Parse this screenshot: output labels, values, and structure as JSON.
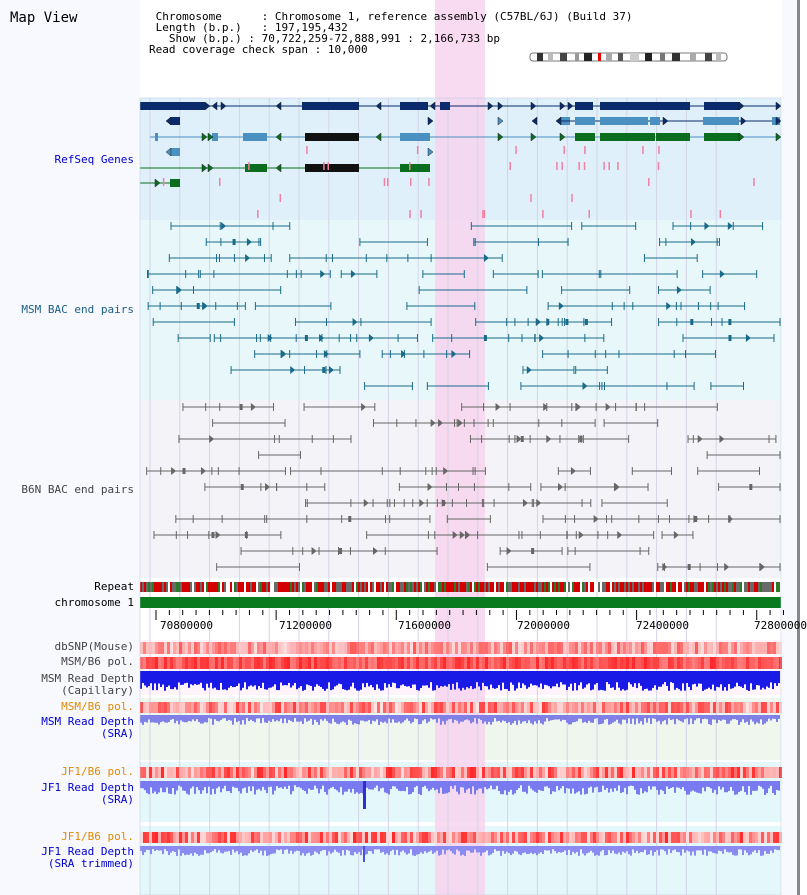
{
  "header": {
    "title": "Map View",
    "chromosome_label": "Chromosome",
    "chromosome_value": "Chromosome 1, reference assembly (C57BL/6J) (Build 37)",
    "length_label": "Length (b.p.)",
    "length_value": "197,195,432",
    "show_label": "Show (b.p.)",
    "show_value": "70,722,259-72,888,991 : 2,166,733 bp",
    "coverage_label": "Read coverage check span",
    "coverage_value": "10,000"
  },
  "tracks": {
    "refseq": "RefSeq Genes",
    "msm_bac": "MSM BAC end pairs",
    "b6n_bac": "B6N BAC end pairs",
    "repeat": "Repeat",
    "chromosome": "chromosome 1",
    "dbsnp": "dbSNP(Mouse)",
    "msm_b6_pol": "MSM/B6 pol.",
    "msm_depth_cap_1": "MSM Read Depth",
    "msm_depth_cap_2": "(Capillary)",
    "msm_b6_pol_sra": "MSM/B6 pol.",
    "msm_depth_sra_1": "MSM Read Depth",
    "msm_depth_sra_2": "(SRA)",
    "jf1_b6_pol": "JF1/B6 pol.",
    "jf1_depth_1": "JF1 Read Depth",
    "jf1_depth_2": "(SRA)",
    "jf1_b6_pol_trim": "JF1/B6 pol.",
    "jf1_trim_1": "JF1 Read Depth",
    "jf1_trim_2": "(SRA trimmed)"
  },
  "axis": {
    "ticks": [
      "70800000",
      "71200000",
      "71600000",
      "72000000",
      "72400000",
      "72800000"
    ]
  },
  "colors": {
    "refseq_bg": "#dff0fa",
    "msm_bg": "#e8f8fa",
    "b6n_bg": "#f4f4f8",
    "highlight": "#f7d4ee",
    "navy": "#0a2a6b",
    "steel": "#4a90c0",
    "green": "#0a6e1e",
    "teal": "#1a6b8a",
    "gray": "#666666",
    "chrom_green": "#0a7a1e",
    "label_blue": "#0000cc",
    "label_teal": "#1a5e80",
    "label_orange": "#e08a00"
  }
}
